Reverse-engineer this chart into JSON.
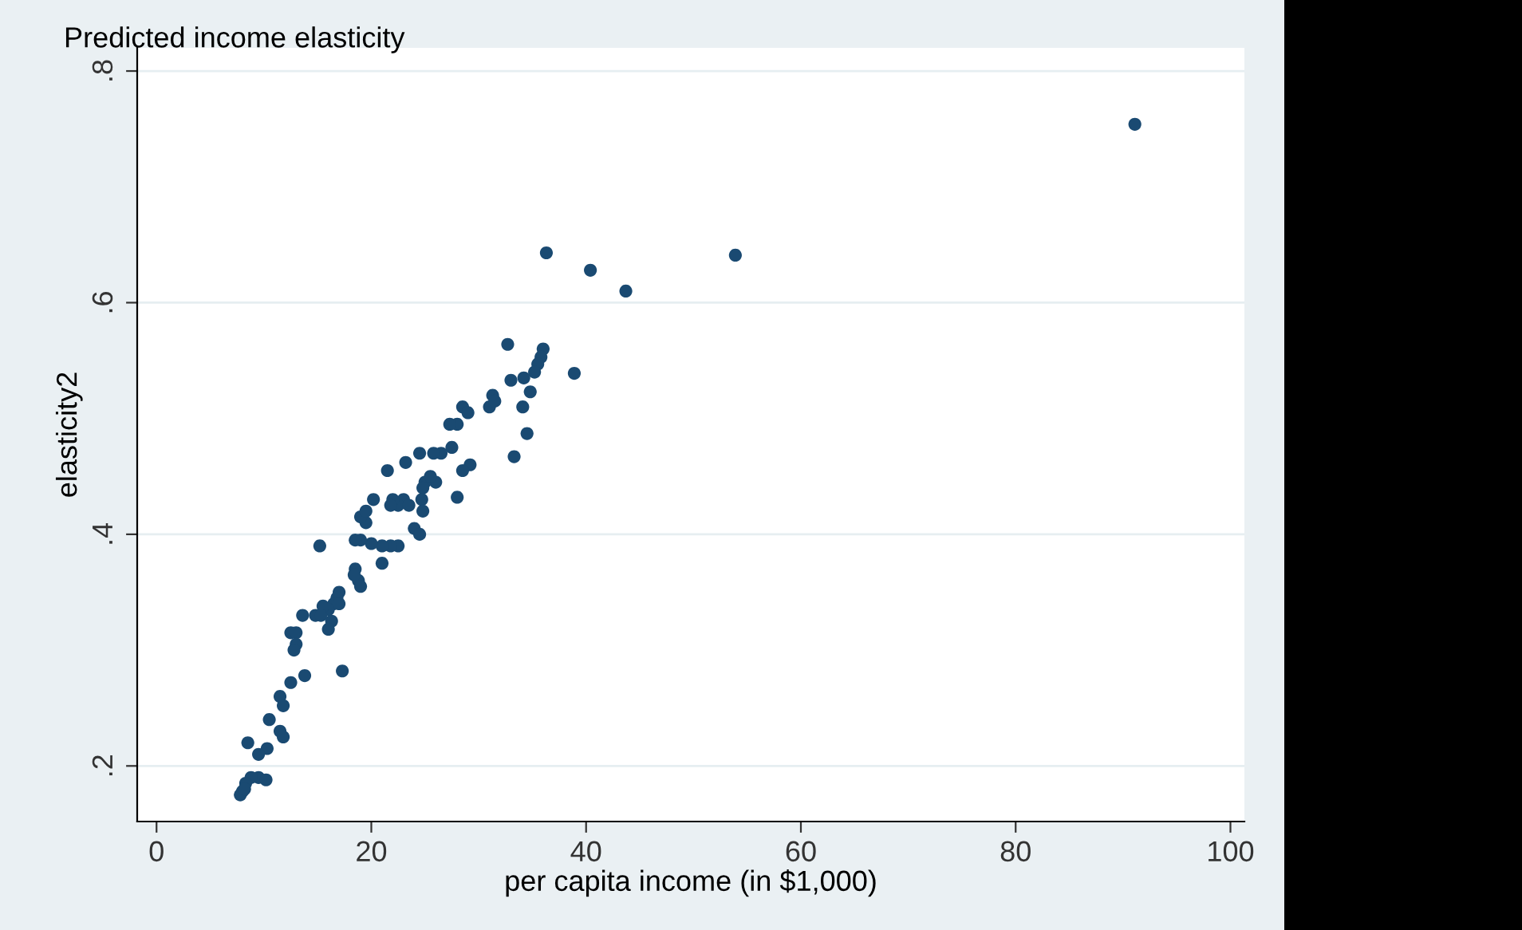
{
  "chart_data": {
    "type": "scatter",
    "title": "Predicted income elasticity",
    "xlabel": "per capita income (in $1,000)",
    "ylabel": "elasticity2",
    "x": [
      91.1,
      53.9,
      43.7,
      40.4,
      36.3,
      38.9,
      32.7,
      36,
      35.8,
      35.5,
      35.2,
      33,
      34.2,
      34.8,
      34.1,
      34.5,
      33.3,
      31.3,
      31,
      31.5,
      28.5,
      29,
      28,
      27.3,
      26.5,
      27.5,
      29.2,
      28.5,
      28,
      25.8,
      24.5,
      23.2,
      21.5,
      26,
      25,
      24.8,
      25.5,
      24.7,
      24.8,
      24,
      24.5,
      23,
      22.5,
      22,
      21.8,
      23.5,
      20.2,
      22.5,
      21.8,
      21,
      20,
      19,
      18.5,
      19.5,
      19,
      19.5,
      21,
      18.5,
      18.8,
      19,
      18.4,
      15.2,
      17,
      16.8,
      16.5,
      16,
      15.5,
      14.8,
      16.3,
      15.3,
      16,
      17,
      17.3,
      13.6,
      12.5,
      13,
      13,
      12.8,
      13.8,
      12.5,
      11.5,
      11.8,
      11.5,
      11.8,
      10.5,
      10.3,
      9.5,
      8.5,
      9.5,
      10.2,
      8.8,
      8.3,
      8,
      7.8,
      8.2
    ],
    "values": [
      0.754,
      0.641,
      0.61,
      0.628,
      0.643,
      0.539,
      0.564,
      0.56,
      0.553,
      0.547,
      0.54,
      0.533,
      0.535,
      0.523,
      0.51,
      0.487,
      0.467,
      0.52,
      0.51,
      0.515,
      0.51,
      0.505,
      0.495,
      0.495,
      0.47,
      0.475,
      0.46,
      0.455,
      0.432,
      0.47,
      0.47,
      0.462,
      0.455,
      0.445,
      0.445,
      0.44,
      0.45,
      0.43,
      0.42,
      0.405,
      0.4,
      0.43,
      0.425,
      0.43,
      0.425,
      0.425,
      0.43,
      0.39,
      0.39,
      0.39,
      0.392,
      0.395,
      0.395,
      0.41,
      0.415,
      0.42,
      0.375,
      0.37,
      0.36,
      0.355,
      0.365,
      0.39,
      0.35,
      0.345,
      0.34,
      0.335,
      0.338,
      0.33,
      0.325,
      0.33,
      0.318,
      0.34,
      0.282,
      0.33,
      0.315,
      0.315,
      0.305,
      0.3,
      0.278,
      0.272,
      0.26,
      0.252,
      0.23,
      0.225,
      0.24,
      0.215,
      0.21,
      0.22,
      0.19,
      0.188,
      0.19,
      0.185,
      0.178,
      0.175,
      0.18
    ],
    "color": "#1a4a72",
    "marker": "circle",
    "grid": "y",
    "xlim": [
      -1.8,
      101.3
    ],
    "ylim": [
      0.152,
      0.82
    ],
    "xticks": [
      0,
      20,
      40,
      60,
      80,
      100
    ],
    "yticks": [
      {
        "value": 0.2,
        "label": ".2"
      },
      {
        "value": 0.4,
        "label": ".4"
      },
      {
        "value": 0.6,
        "label": ".6"
      },
      {
        "value": 0.8,
        "label": ".8"
      }
    ]
  }
}
